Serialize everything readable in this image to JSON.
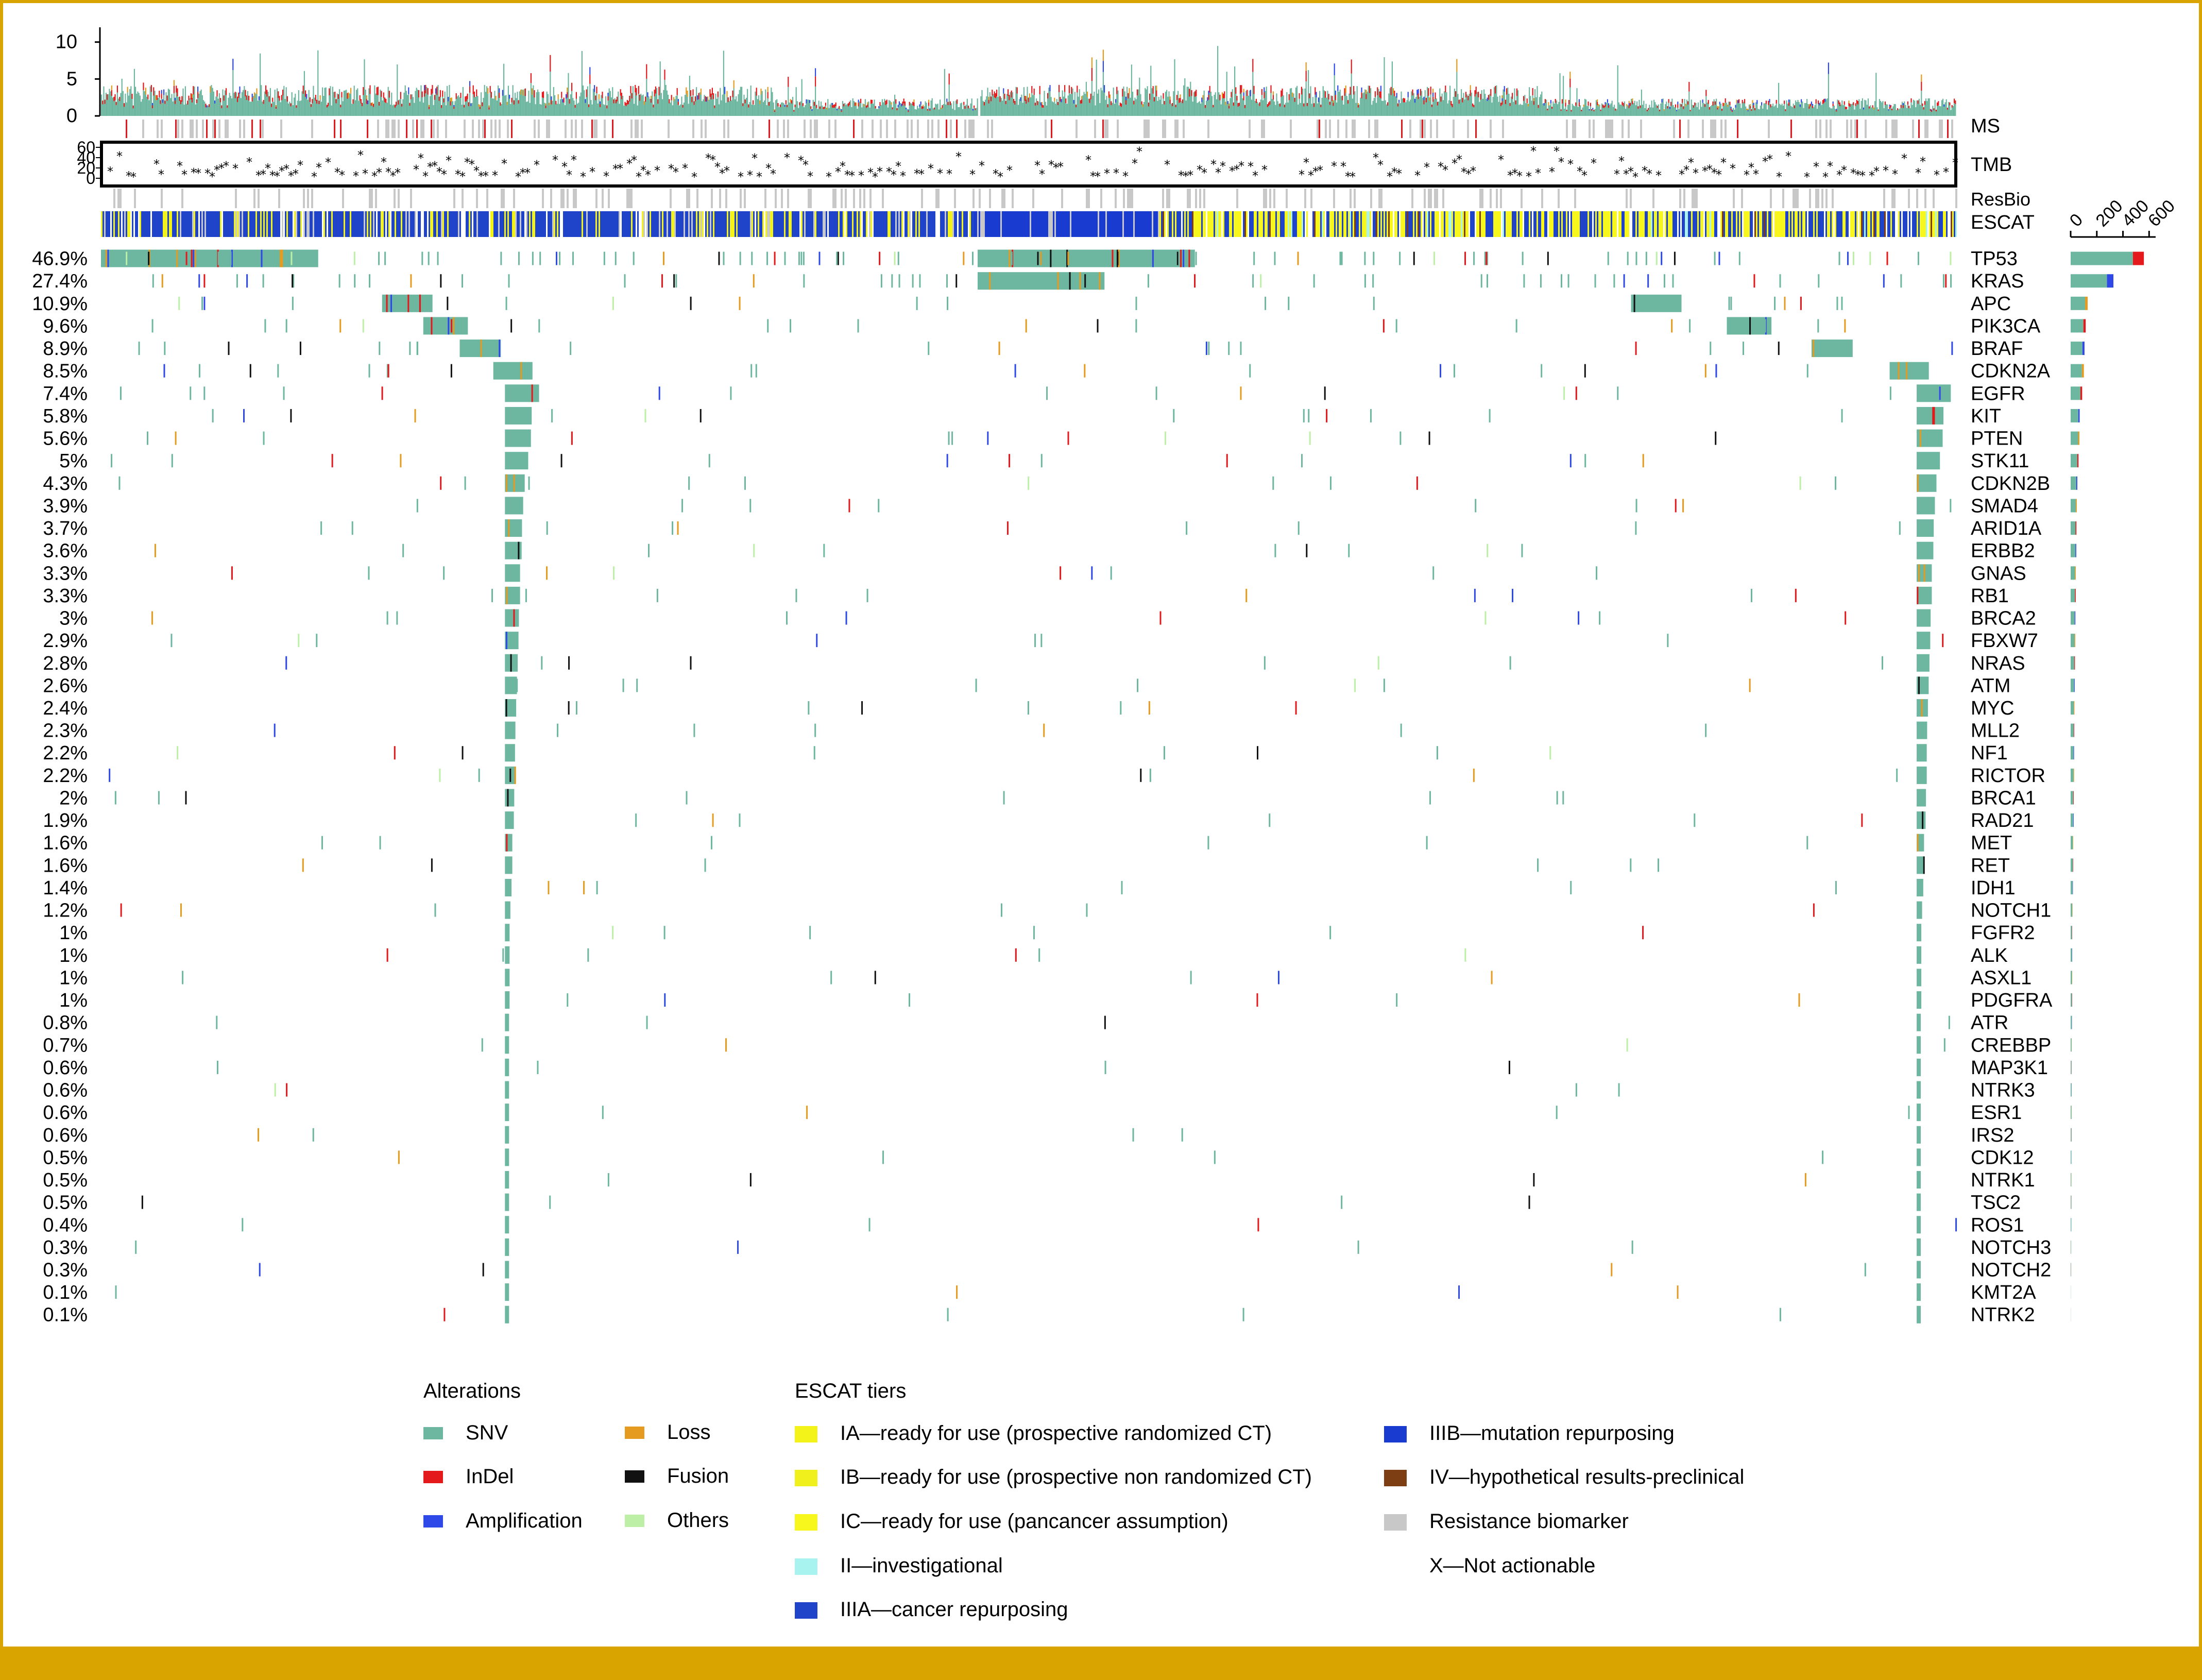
{
  "colors": {
    "frame": "#d9a300",
    "snv": "#6db6a0",
    "indel": "#e3191b",
    "amplification": "#2f49e8",
    "loss": "#e59b1f",
    "fusion": "#111111",
    "others": "#bdf0a6",
    "tier_ia": "#f3f31a",
    "tier_ib": "#f0f01c",
    "tier_ic": "#f7f71e",
    "tier_ii": "#a8f2f0",
    "tier_iiia": "#1f44c9",
    "tier_iiib": "#1a3bd0",
    "tier_iv": "#7d3e13",
    "resistance": "#c8c8c8"
  },
  "chart_data": {
    "type": "heatmap",
    "subtype": "oncoprint",
    "top_bar": {
      "yticks": [
        "10",
        "5",
        "0"
      ],
      "ylim": [
        0,
        12
      ]
    },
    "track_labels": {
      "ms": "MS",
      "tmb": "TMB",
      "resbio": "ResBio",
      "escat": "ESCAT"
    },
    "tmb_axis": {
      "yticks": [
        "60",
        "40",
        "20",
        "0"
      ]
    },
    "right_axis": {
      "ticks": [
        "0",
        "200",
        "400",
        "600"
      ],
      "xlim": [
        0,
        650
      ]
    },
    "genes": [
      {
        "name": "TP53",
        "freq": "46.9%",
        "count": 560
      },
      {
        "name": "KRAS",
        "freq": "27.4%",
        "count": 327
      },
      {
        "name": "APC",
        "freq": "10.9%",
        "count": 130
      },
      {
        "name": "PIK3CA",
        "freq": "9.6%",
        "count": 115
      },
      {
        "name": "BRAF",
        "freq": "8.9%",
        "count": 106
      },
      {
        "name": "CDKN2A",
        "freq": "8.5%",
        "count": 101
      },
      {
        "name": "EGFR",
        "freq": "7.4%",
        "count": 88
      },
      {
        "name": "KIT",
        "freq": "5.8%",
        "count": 69
      },
      {
        "name": "PTEN",
        "freq": "5.6%",
        "count": 67
      },
      {
        "name": "STK11",
        "freq": "5%",
        "count": 60
      },
      {
        "name": "CDKN2B",
        "freq": "4.3%",
        "count": 51
      },
      {
        "name": "SMAD4",
        "freq": "3.9%",
        "count": 47
      },
      {
        "name": "ARID1A",
        "freq": "3.7%",
        "count": 44
      },
      {
        "name": "ERBB2",
        "freq": "3.6%",
        "count": 43
      },
      {
        "name": "GNAS",
        "freq": "3.3%",
        "count": 39
      },
      {
        "name": "RB1",
        "freq": "3.3%",
        "count": 39
      },
      {
        "name": "BRCA2",
        "freq": "3%",
        "count": 36
      },
      {
        "name": "FBXW7",
        "freq": "2.9%",
        "count": 35
      },
      {
        "name": "NRAS",
        "freq": "2.8%",
        "count": 33
      },
      {
        "name": "ATM",
        "freq": "2.6%",
        "count": 31
      },
      {
        "name": "MYC",
        "freq": "2.4%",
        "count": 29
      },
      {
        "name": "MLL2",
        "freq": "2.3%",
        "count": 27
      },
      {
        "name": "NF1",
        "freq": "2.2%",
        "count": 26
      },
      {
        "name": "RICTOR",
        "freq": "2.2%",
        "count": 26
      },
      {
        "name": "BRCA1",
        "freq": "2%",
        "count": 24
      },
      {
        "name": "RAD21",
        "freq": "1.9%",
        "count": 23
      },
      {
        "name": "MET",
        "freq": "1.6%",
        "count": 19
      },
      {
        "name": "RET",
        "freq": "1.6%",
        "count": 19
      },
      {
        "name": "IDH1",
        "freq": "1.4%",
        "count": 17
      },
      {
        "name": "NOTCH1",
        "freq": "1.2%",
        "count": 14
      },
      {
        "name": "FGFR2",
        "freq": "1%",
        "count": 12
      },
      {
        "name": "ALK",
        "freq": "1%",
        "count": 12
      },
      {
        "name": "ASXL1",
        "freq": "1%",
        "count": 12
      },
      {
        "name": "PDGFRA",
        "freq": "1%",
        "count": 12
      },
      {
        "name": "ATR",
        "freq": "0.8%",
        "count": 10
      },
      {
        "name": "CREBBP",
        "freq": "0.7%",
        "count": 8
      },
      {
        "name": "MAP3K1",
        "freq": "0.6%",
        "count": 7
      },
      {
        "name": "NTRK3",
        "freq": "0.6%",
        "count": 7
      },
      {
        "name": "ESR1",
        "freq": "0.6%",
        "count": 7
      },
      {
        "name": "IRS2",
        "freq": "0.6%",
        "count": 7
      },
      {
        "name": "CDK12",
        "freq": "0.5%",
        "count": 6
      },
      {
        "name": "NTRK1",
        "freq": "0.5%",
        "count": 6
      },
      {
        "name": "TSC2",
        "freq": "0.5%",
        "count": 6
      },
      {
        "name": "ROS1",
        "freq": "0.4%",
        "count": 5
      },
      {
        "name": "NOTCH3",
        "freq": "0.3%",
        "count": 4
      },
      {
        "name": "NOTCH2",
        "freq": "0.3%",
        "count": 4
      },
      {
        "name": "KMT2A",
        "freq": "0.1%",
        "count": 1
      },
      {
        "name": "NTRK2",
        "freq": "0.1%",
        "count": 1
      }
    ]
  },
  "legend": {
    "alterations_title": "Alterations",
    "alterations": [
      {
        "label": "SNV",
        "color": "#6db6a0"
      },
      {
        "label": "InDel",
        "color": "#e3191b"
      },
      {
        "label": "Amplification",
        "color": "#2f49e8"
      },
      {
        "label": "Loss",
        "color": "#e59b1f"
      },
      {
        "label": "Fusion",
        "color": "#111111"
      },
      {
        "label": "Others",
        "color": "#bdf0a6"
      }
    ],
    "tiers_title": "ESCAT tiers",
    "tiers": [
      {
        "label": "IA—ready for use (prospective randomized CT)",
        "color": "#f3f31a"
      },
      {
        "label": "IB—ready for use (prospective non randomized CT)",
        "color": "#f0f01c"
      },
      {
        "label": "IC—ready for use (pancancer assumption)",
        "color": "#f7f71e"
      },
      {
        "label": "II—investigational",
        "color": "#a8f2f0"
      },
      {
        "label": "IIIA—cancer repurposing",
        "color": "#1f44c9"
      },
      {
        "label": "IIIB—mutation repurposing",
        "color": "#1a3bd0"
      },
      {
        "label": "IV—hypothetical results-preclinical",
        "color": "#7d3e13"
      },
      {
        "label": "Resistance biomarker",
        "color": "#c8c8c8"
      },
      {
        "label": "X—Not actionable",
        "color": "#ffffff"
      }
    ]
  }
}
